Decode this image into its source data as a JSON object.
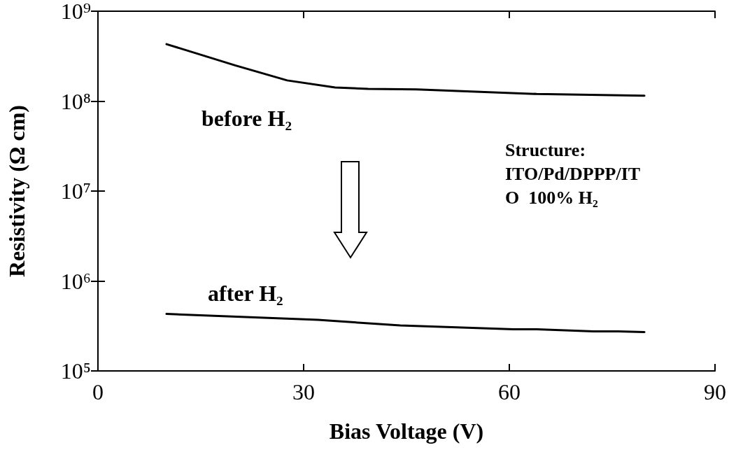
{
  "chart_data": {
    "type": "line",
    "xlabel": "Bias Voltage (V)",
    "ylabel": "Resistivity (Ω cm)",
    "log": "y",
    "xlim": [
      0,
      90
    ],
    "xticks": [
      0,
      30,
      60,
      90
    ],
    "ylim": [
      100000,
      1000000000
    ],
    "yticks": [
      {
        "value": 100000,
        "label": "10⁵"
      },
      {
        "value": 1000000,
        "label": "10⁶"
      },
      {
        "value": 10000000,
        "label": "10⁷"
      },
      {
        "value": 100000000,
        "label": "10⁸"
      },
      {
        "value": 1000000000,
        "label": "10⁹"
      }
    ],
    "series": [
      {
        "color": "#000000",
        "x": [
          10,
          20,
          27.6,
          34.6,
          39.4,
          46.5,
          64,
          79.7
        ],
        "values": [
          430000000,
          250000000,
          170000000,
          142000000,
          137000000,
          135000000,
          120000000,
          115000000
        ]
      },
      {
        "color": "#000000",
        "x": [
          10,
          32.1,
          44.1,
          60.6,
          64,
          72.3,
          75.9,
          79.7
        ],
        "values": [
          430000,
          370000,
          320000,
          290000,
          290000,
          275000,
          275000,
          270000
        ]
      }
    ],
    "annotations": [
      "before H₂",
      "after H₂",
      "Structure:\nITO/Pd/DPPP/IT\nO  100% H₂"
    ],
    "grid": false,
    "marker": "none",
    "line_style": "solid"
  }
}
